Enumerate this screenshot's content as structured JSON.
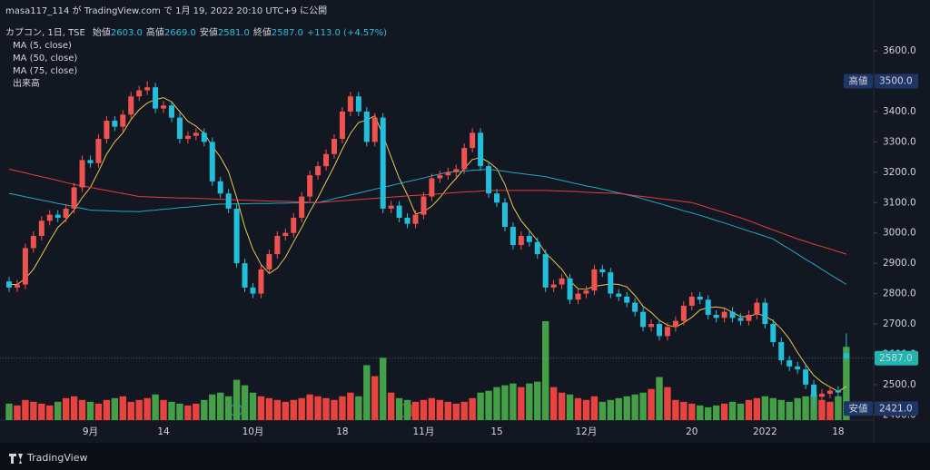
{
  "chart_data": {
    "type": "candlestick",
    "header": "masa117_114 が TradingView.com で 1月 19, 2022 20:10 UTC+9 に公開",
    "symbol": "カプコン, 1日, TSE",
    "ohlc_legend": [
      {
        "name": "始値",
        "value": "2603.0"
      },
      {
        "name": "高値",
        "value": "2669.0"
      },
      {
        "name": "安値",
        "value": "2581.0"
      },
      {
        "name": "終値",
        "value": "2587.0"
      }
    ],
    "change": "+113.0 (+4.57%)",
    "volume_name": "出来高",
    "footer": "TradingView",
    "events": [
      "D",
      "E"
    ],
    "up_color": "#ef5350",
    "down_color": "#22bfdc",
    "volume_up_color": "#e8433e",
    "volume_down_color": "#43a047",
    "categories": [
      null,
      null,
      null,
      null,
      null,
      null,
      null,
      null,
      null,
      null,
      "9月",
      null,
      null,
      null,
      null,
      null,
      null,
      null,
      null,
      "14",
      null,
      null,
      null,
      null,
      null,
      null,
      null,
      null,
      null,
      null,
      "10月",
      null,
      null,
      null,
      null,
      null,
      null,
      null,
      null,
      null,
      null,
      "18",
      null,
      null,
      null,
      null,
      null,
      null,
      null,
      null,
      null,
      "11月",
      null,
      null,
      null,
      null,
      null,
      null,
      null,
      null,
      "15",
      null,
      null,
      null,
      null,
      null,
      null,
      null,
      null,
      null,
      null,
      "12月",
      null,
      null,
      null,
      null,
      null,
      null,
      null,
      null,
      null,
      null,
      null,
      null,
      "20",
      null,
      null,
      null,
      null,
      null,
      null,
      null,
      null,
      "2022",
      null,
      null,
      null,
      null,
      null,
      null,
      null,
      null,
      "18",
      null
    ],
    "open": [
      2840,
      2820,
      2830,
      2950,
      2990,
      3040,
      3060,
      3050,
      3080,
      3150,
      3240,
      3230,
      3310,
      3370,
      3350,
      3390,
      3450,
      3470,
      3480,
      3410,
      3420,
      3380,
      3310,
      3320,
      3330,
      3300,
      3170,
      3130,
      3080,
      2900,
      2820,
      2800,
      2880,
      2930,
      2990,
      3000,
      3050,
      3120,
      3190,
      3220,
      3260,
      3310,
      3400,
      3450,
      3400,
      3300,
      3380,
      3080,
      3090,
      3050,
      3030,
      3060,
      3120,
      3180,
      3190,
      3200,
      3210,
      3280,
      3330,
      3220,
      3130,
      3100,
      3020,
      2960,
      2990,
      2970,
      2930,
      2820,
      2830,
      2850,
      2780,
      2800,
      2810,
      2880,
      2870,
      2800,
      2790,
      2770,
      2740,
      2690,
      2700,
      2660,
      2690,
      2710,
      2760,
      2790,
      2780,
      2730,
      2720,
      2740,
      2720,
      2710,
      2730,
      2770,
      2700,
      2640,
      2580,
      2560,
      2550,
      2500,
      2460,
      2470,
      2480,
      2603
    ],
    "high": [
      2855,
      2845,
      2965,
      3005,
      3055,
      3075,
      3075,
      3095,
      3165,
      3255,
      3255,
      3325,
      3385,
      3385,
      3405,
      3465,
      3485,
      3500,
      3495,
      3435,
      3435,
      3395,
      3335,
      3345,
      3345,
      3315,
      3185,
      3145,
      3095,
      2915,
      2835,
      2895,
      2945,
      3005,
      3015,
      3065,
      3135,
      3205,
      3235,
      3275,
      3325,
      3415,
      3465,
      3465,
      3415,
      3395,
      3395,
      3105,
      3105,
      3065,
      3075,
      3135,
      3195,
      3205,
      3215,
      3225,
      3295,
      3345,
      3345,
      3235,
      3145,
      3115,
      3035,
      3005,
      3005,
      2985,
      2945,
      2845,
      2865,
      2865,
      2815,
      2825,
      2895,
      2895,
      2885,
      2815,
      2805,
      2785,
      2755,
      2715,
      2715,
      2705,
      2725,
      2775,
      2805,
      2805,
      2795,
      2745,
      2755,
      2755,
      2735,
      2745,
      2785,
      2785,
      2715,
      2655,
      2595,
      2575,
      2565,
      2515,
      2485,
      2495,
      2495,
      2669
    ],
    "low": [
      2805,
      2805,
      2815,
      2935,
      2975,
      3025,
      3035,
      3035,
      3065,
      3135,
      3215,
      3215,
      3295,
      3335,
      3335,
      3375,
      3435,
      3455,
      3395,
      3395,
      3365,
      3295,
      3295,
      3305,
      3285,
      3155,
      3115,
      3065,
      2885,
      2805,
      2785,
      2785,
      2865,
      2915,
      2975,
      2985,
      3035,
      3105,
      3175,
      3205,
      3245,
      3295,
      3385,
      3385,
      3285,
      3285,
      3065,
      3065,
      3035,
      3015,
      3015,
      3045,
      3105,
      3165,
      3175,
      3185,
      3195,
      3265,
      3205,
      3115,
      3085,
      3005,
      2945,
      2945,
      2955,
      2915,
      2805,
      2805,
      2815,
      2765,
      2765,
      2785,
      2795,
      2855,
      2785,
      2775,
      2755,
      2725,
      2675,
      2675,
      2645,
      2645,
      2675,
      2695,
      2745,
      2765,
      2715,
      2705,
      2705,
      2705,
      2695,
      2695,
      2715,
      2685,
      2625,
      2565,
      2545,
      2535,
      2485,
      2421,
      2445,
      2455,
      2459,
      2581
    ],
    "close": [
      2820,
      2830,
      2950,
      2990,
      3040,
      3060,
      3050,
      3080,
      3150,
      3240,
      3230,
      3310,
      3370,
      3350,
      3390,
      3450,
      3470,
      3480,
      3410,
      3420,
      3380,
      3310,
      3320,
      3330,
      3300,
      3170,
      3130,
      3080,
      2900,
      2820,
      2800,
      2880,
      2930,
      2990,
      3000,
      3050,
      3120,
      3190,
      3220,
      3260,
      3310,
      3400,
      3450,
      3400,
      3300,
      3380,
      3080,
      3090,
      3050,
      3030,
      3060,
      3120,
      3180,
      3190,
      3200,
      3210,
      3280,
      3330,
      3220,
      3130,
      3100,
      3020,
      2960,
      2990,
      2970,
      2930,
      2820,
      2830,
      2850,
      2780,
      2800,
      2810,
      2880,
      2870,
      2800,
      2790,
      2770,
      2740,
      2690,
      2700,
      2660,
      2690,
      2710,
      2760,
      2790,
      2780,
      2730,
      2720,
      2740,
      2720,
      2710,
      2730,
      2770,
      2700,
      2640,
      2580,
      2560,
      2550,
      2500,
      2460,
      2470,
      2480,
      2474,
      2587
    ],
    "volume": [
      18,
      16,
      22,
      20,
      18,
      16,
      20,
      24,
      26,
      22,
      20,
      18,
      22,
      24,
      26,
      20,
      22,
      24,
      28,
      22,
      20,
      18,
      16,
      18,
      22,
      28,
      30,
      26,
      44,
      38,
      30,
      26,
      24,
      22,
      20,
      22,
      24,
      28,
      26,
      24,
      22,
      26,
      30,
      26,
      60,
      48,
      68,
      30,
      24,
      22,
      20,
      22,
      24,
      22,
      20,
      18,
      20,
      24,
      30,
      32,
      36,
      38,
      40,
      36,
      40,
      42,
      108,
      36,
      30,
      28,
      24,
      22,
      26,
      20,
      22,
      24,
      26,
      28,
      30,
      34,
      47,
      36,
      22,
      20,
      18,
      16,
      14,
      16,
      18,
      20,
      18,
      22,
      24,
      26,
      24,
      22,
      20,
      24,
      26,
      28,
      22,
      20,
      26,
      80
    ],
    "series": [
      {
        "name": "MA (5, close)",
        "color": "#e6c84a",
        "values": [
          2830,
          2830,
          2850,
          2880,
          2926,
          2974,
          3018,
          3044,
          3076,
          3116,
          3150,
          3202,
          3260,
          3300,
          3330,
          3374,
          3406,
          3428,
          3440,
          3446,
          3432,
          3400,
          3368,
          3352,
          3328,
          3286,
          3250,
          3202,
          3116,
          3020,
          2946,
          2896,
          2866,
          2884,
          2920,
          2970,
          3018,
          3070,
          3116,
          3168,
          3220,
          3276,
          3328,
          3364,
          3372,
          3386,
          3322,
          3250,
          3180,
          3126,
          3062,
          3070,
          3088,
          3116,
          3150,
          3180,
          3212,
          3242,
          3248,
          3234,
          3212,
          3160,
          3086,
          3040,
          3008,
          2974,
          2934,
          2908,
          2880,
          2842,
          2816,
          2814,
          2824,
          2828,
          2832,
          2830,
          2822,
          2794,
          2758,
          2738,
          2712,
          2696,
          2690,
          2704,
          2722,
          2746,
          2754,
          2756,
          2752,
          2738,
          2724,
          2724,
          2734,
          2726,
          2710,
          2684,
          2650,
          2606,
          2566,
          2530,
          2508,
          2492,
          2477,
          2494
        ]
      },
      {
        "name": "MA (50, close)",
        "color": "#1fa9c7",
        "values": [
          3130,
          3125,
          3119,
          3114,
          3108,
          3103,
          3097,
          3092,
          3086,
          3081,
          3075,
          3074,
          3073,
          3072,
          3071,
          3071,
          3070,
          3073,
          3075,
          3078,
          3080,
          3083,
          3085,
          3088,
          3090,
          3093,
          3095,
          3095,
          3096,
          3096,
          3097,
          3097,
          3097,
          3098,
          3098,
          3099,
          3099,
          3100,
          3100,
          3106,
          3113,
          3119,
          3125,
          3131,
          3138,
          3144,
          3150,
          3156,
          3163,
          3169,
          3175,
          3181,
          3188,
          3194,
          3200,
          3202,
          3204,
          3206,
          3208,
          3210,
          3206,
          3203,
          3199,
          3196,
          3192,
          3189,
          3185,
          3179,
          3173,
          3167,
          3161,
          3155,
          3150,
          3144,
          3138,
          3132,
          3126,
          3120,
          3112,
          3104,
          3097,
          3089,
          3081,
          3073,
          3066,
          3058,
          3050,
          3041,
          3033,
          3024,
          3015,
          3006,
          2998,
          2989,
          2980,
          2963,
          2947,
          2930,
          2913,
          2897,
          2880,
          2863,
          2847,
          2830
        ]
      },
      {
        "name": "MA (75, close)",
        "color": "#e0403a",
        "values": [
          3210,
          3204,
          3198,
          3191,
          3185,
          3179,
          3173,
          3166,
          3160,
          3155,
          3150,
          3145,
          3140,
          3135,
          3130,
          3125,
          3120,
          3119,
          3118,
          3117,
          3116,
          3115,
          3115,
          3114,
          3113,
          3112,
          3111,
          3110,
          3109,
          3108,
          3107,
          3106,
          3105,
          3105,
          3104,
          3103,
          3102,
          3101,
          3100,
          3102,
          3104,
          3106,
          3108,
          3110,
          3112,
          3114,
          3116,
          3118,
          3120,
          3122,
          3124,
          3125,
          3127,
          3129,
          3131,
          3133,
          3135,
          3136,
          3138,
          3140,
          3140,
          3140,
          3140,
          3140,
          3140,
          3140,
          3140,
          3139,
          3138,
          3137,
          3136,
          3134,
          3133,
          3132,
          3131,
          3130,
          3127,
          3123,
          3120,
          3117,
          3113,
          3110,
          3107,
          3103,
          3100,
          3092,
          3083,
          3075,
          3067,
          3058,
          3050,
          3040,
          3030,
          3020,
          3010,
          3000,
          2990,
          2980,
          2972,
          2963,
          2955,
          2947,
          2938,
          2930
        ]
      }
    ],
    "ylim": [
      2383,
      3678
    ],
    "yticks": [
      {
        "value": 2400,
        "label": "2400.0"
      },
      {
        "value": 2500,
        "label": "2500.0"
      },
      {
        "value": 2600,
        "label": "2600.0"
      },
      {
        "value": 2700,
        "label": "2700.0"
      },
      {
        "value": 2800,
        "label": "2800.0"
      },
      {
        "value": 2900,
        "label": "2900.0"
      },
      {
        "value": 3000,
        "label": "3000.0"
      },
      {
        "value": 3100,
        "label": "3100.0"
      },
      {
        "value": 3200,
        "label": "3200.0"
      },
      {
        "value": 3300,
        "label": "3300.0"
      },
      {
        "value": 3400,
        "label": "3400.0"
      },
      {
        "value": 3500,
        "label": "3500.0"
      },
      {
        "value": 3600,
        "label": "3600.0"
      }
    ],
    "grid": false,
    "markers": [
      {
        "name": "高値",
        "value": 3500,
        "label": "3500.0",
        "color": "#1e3566"
      },
      {
        "value": 2587,
        "label": "2587.0",
        "color": "#1fb5b0"
      },
      {
        "name": "安値",
        "value": 2421,
        "label": "2421.0",
        "color": "#1e3566"
      }
    ]
  }
}
